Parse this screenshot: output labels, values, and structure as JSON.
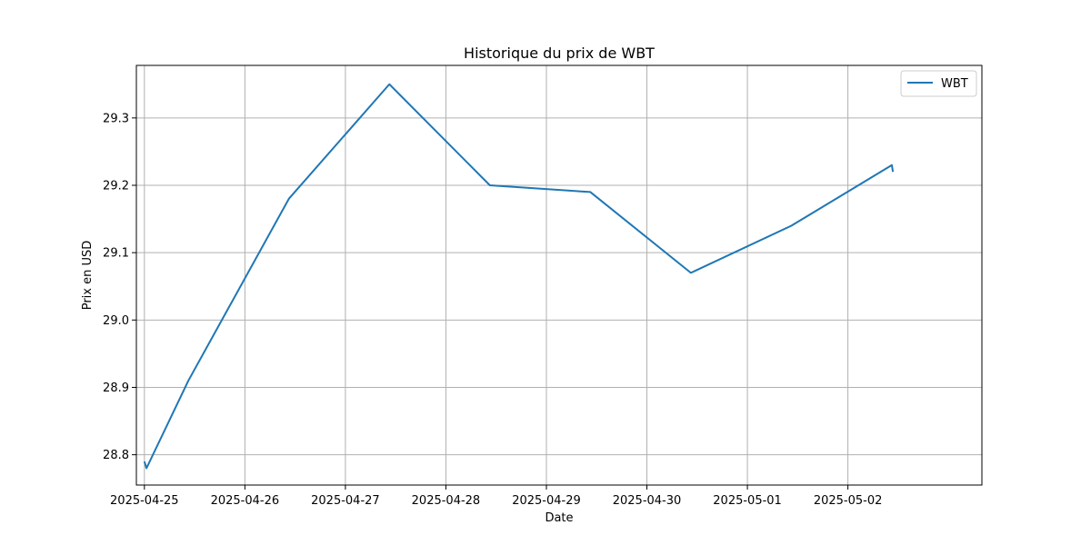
{
  "chart_data": {
    "type": "line",
    "title": "Historique du prix de WBT",
    "xlabel": "Date",
    "ylabel": "Prix en USD",
    "grid": true,
    "legend_position": "top-right",
    "xlim": [
      "2025-04-24T22:05:00",
      "2025-05-03T08:00:00"
    ],
    "ylim": [
      28.755,
      29.378
    ],
    "x_ticks": [
      "2025-04-25",
      "2025-04-26",
      "2025-04-27",
      "2025-04-28",
      "2025-04-29",
      "2025-04-30",
      "2025-05-01",
      "2025-05-02"
    ],
    "y_ticks": [
      "28.8",
      "28.9",
      "29.0",
      "29.1",
      "29.2",
      "29.3"
    ],
    "series": [
      {
        "name": "WBT",
        "color": "#1f77b4",
        "points": [
          {
            "x": "2025-04-25T00:00:00",
            "y": 28.79
          },
          {
            "x": "2025-04-25T00:30:00",
            "y": 28.78
          },
          {
            "x": "2025-04-25T10:30:00",
            "y": 28.91
          },
          {
            "x": "2025-04-26T10:30:00",
            "y": 29.18
          },
          {
            "x": "2025-04-27T10:30:00",
            "y": 29.35
          },
          {
            "x": "2025-04-28T10:30:00",
            "y": 29.2
          },
          {
            "x": "2025-04-29T10:30:00",
            "y": 29.19
          },
          {
            "x": "2025-04-30T10:30:00",
            "y": 29.07
          },
          {
            "x": "2025-05-01T10:30:00",
            "y": 29.14
          },
          {
            "x": "2025-05-02T10:30:00",
            "y": 29.23
          },
          {
            "x": "2025-05-02T10:45:00",
            "y": 29.22
          }
        ]
      }
    ]
  }
}
